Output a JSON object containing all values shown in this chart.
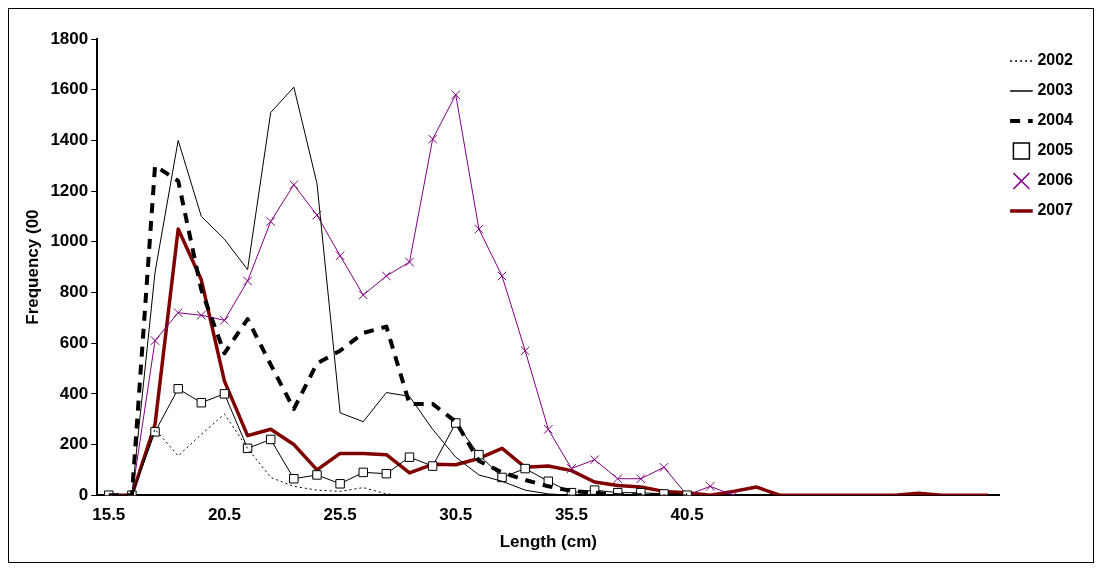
{
  "chart_data": {
    "type": "line",
    "xlabel": "Length (cm)",
    "ylabel": "Frequency (00",
    "categories": [
      "15.5",
      null,
      null,
      null,
      null,
      "20.5",
      null,
      null,
      null,
      null,
      "25.5",
      null,
      null,
      null,
      null,
      "30.5",
      null,
      null,
      null,
      null,
      "35.5",
      null,
      null,
      null,
      null,
      "40.5",
      null,
      null,
      null,
      null,
      null,
      null,
      null,
      null,
      null,
      null,
      null,
      null,
      null
    ],
    "ylim": [
      0,
      1800
    ],
    "yticks": [
      0,
      200,
      400,
      600,
      800,
      1000,
      1200,
      1400,
      1600,
      1800
    ],
    "grid": false,
    "legend": "top right",
    "series": [
      {
        "name": "2002",
        "color": "#000000",
        "line_style": "dotted",
        "marker": "none",
        "values": [
          0,
          0,
          260,
          155,
          240,
          320,
          185,
          70,
          35,
          20,
          15,
          30,
          5,
          0,
          0,
          0,
          0,
          0,
          0,
          0,
          0,
          0,
          0,
          0,
          0,
          0,
          null,
          null,
          null,
          null,
          null,
          null,
          null,
          null,
          null,
          null,
          null,
          null,
          null
        ]
      },
      {
        "name": "2003",
        "color": "#000000",
        "line_style": "solid",
        "marker": "none",
        "values": [
          0,
          0,
          880,
          1400,
          1100,
          1010,
          890,
          1510,
          1610,
          1230,
          325,
          290,
          405,
          390,
          260,
          150,
          80,
          55,
          20,
          5,
          0,
          0,
          0,
          0,
          0,
          0,
          null,
          null,
          null,
          null,
          null,
          null,
          null,
          null,
          null,
          null,
          null,
          null,
          null
        ]
      },
      {
        "name": "2004",
        "color": "#000000",
        "line_style": "dashed",
        "marker": "none",
        "values": [
          0,
          0,
          1300,
          1240,
          810,
          560,
          695,
          515,
          340,
          520,
          570,
          640,
          665,
          360,
          360,
          290,
          135,
          90,
          60,
          35,
          17,
          10,
          0,
          0,
          0,
          0,
          null,
          null,
          null,
          null,
          null,
          null,
          null,
          null,
          null,
          null,
          null,
          null,
          null
        ]
      },
      {
        "name": "2005",
        "color": "#000000",
        "line_style": "solid",
        "marker": "square",
        "values": [
          0,
          0,
          250,
          420,
          365,
          400,
          185,
          220,
          65,
          80,
          45,
          90,
          85,
          150,
          115,
          285,
          160,
          70,
          105,
          55,
          10,
          20,
          10,
          10,
          5,
          0,
          null,
          null,
          null,
          null,
          null,
          null,
          null,
          null,
          null,
          null,
          null,
          null,
          null
        ]
      },
      {
        "name": "2006",
        "color": "#800080",
        "line_style": "solid",
        "marker": "cross",
        "values": [
          0,
          0,
          610,
          720,
          710,
          690,
          845,
          1080,
          1225,
          1105,
          945,
          790,
          865,
          920,
          1405,
          1580,
          1050,
          865,
          570,
          260,
          105,
          140,
          65,
          65,
          110,
          0,
          35,
          0,
          null,
          null,
          null,
          null,
          null,
          null,
          null,
          null,
          null,
          null,
          null
        ]
      },
      {
        "name": "2007",
        "color": "#800000",
        "line_style": "solid",
        "marker": "none",
        "values": [
          0,
          0,
          280,
          1050,
          850,
          450,
          235,
          260,
          200,
          100,
          165,
          165,
          160,
          88,
          122,
          120,
          145,
          185,
          110,
          115,
          97,
          52,
          38,
          32,
          15,
          10,
          0,
          15,
          32,
          0,
          0,
          0,
          0,
          0,
          0,
          8,
          0,
          0,
          0
        ]
      }
    ]
  }
}
